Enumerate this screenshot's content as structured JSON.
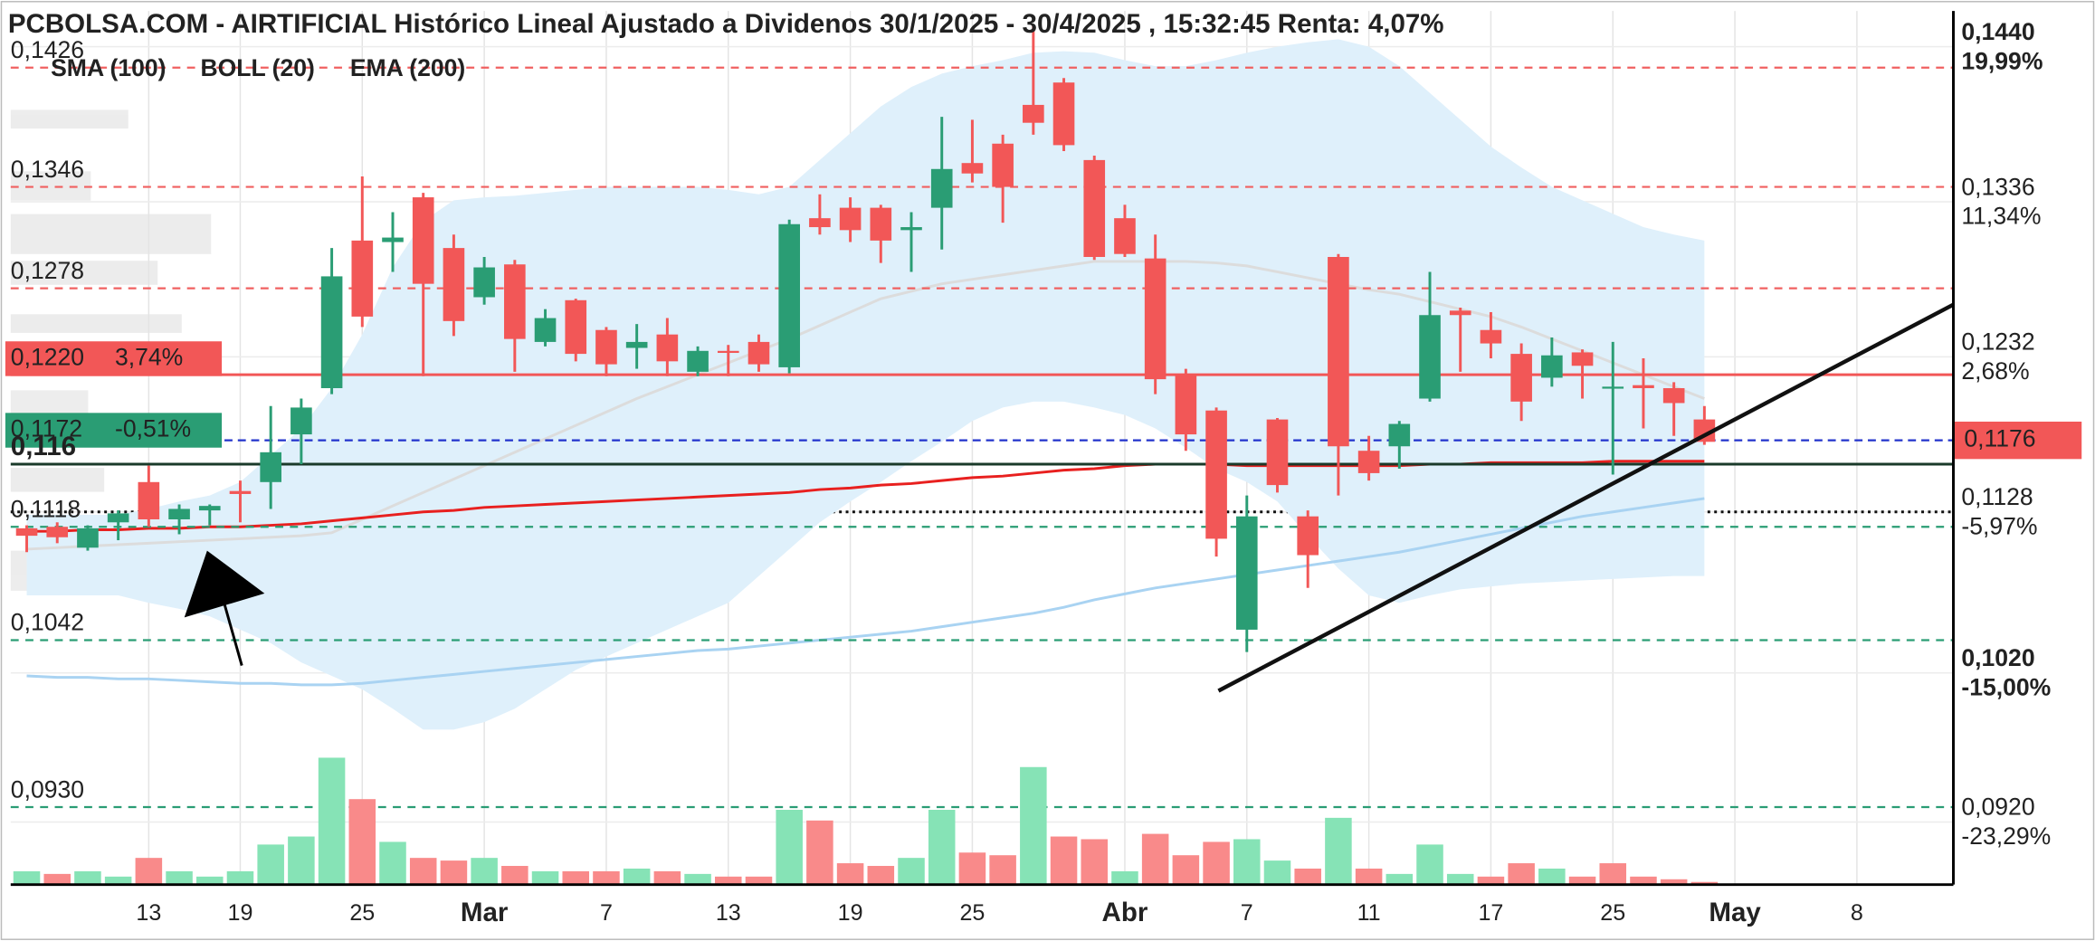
{
  "chart_data": {
    "type": "candlestick",
    "title": "PCBOLSA.COM - AIRTIFICIAL Histórico Lineal Ajustado a Dividenos 30/1/2025 - 30/4/2025 , 15:32:45 Renta: 4,07%",
    "categories": [
      null,
      null,
      null,
      null,
      "13",
      null,
      null,
      "19",
      null,
      null,
      null,
      "25",
      null,
      null,
      null,
      "Mar",
      null,
      null,
      null,
      "7",
      null,
      null,
      null,
      "13",
      null,
      null,
      null,
      "19",
      null,
      null,
      null,
      "25",
      null,
      null,
      null,
      null,
      "Abr",
      null,
      null,
      null,
      "7",
      null,
      null,
      null,
      "11",
      null,
      null,
      null,
      "17",
      null,
      null,
      null,
      "25",
      null,
      null,
      null,
      "May",
      null,
      null,
      null,
      "8"
    ],
    "ylim": [
      0.0878,
      0.1464
    ],
    "up_color": "#2a9d74",
    "down_color": "#f25757",
    "ohlc": {
      "open": [
        0.1117,
        0.1118,
        0.1104,
        0.1121,
        0.1148,
        0.1123,
        0.1129,
        0.1142,
        0.1148,
        0.118,
        0.1211,
        0.131,
        0.1309,
        0.1339,
        0.1305,
        0.1272,
        0.1294,
        0.1242,
        0.127,
        0.125,
        0.1238,
        0.1247,
        0.1222,
        0.1236,
        0.1242,
        0.1225,
        0.1325,
        0.1332,
        0.1332,
        0.1317,
        0.1332,
        0.1362,
        0.1375,
        0.1401,
        0.1416,
        0.1364,
        0.1325,
        0.1298,
        0.122,
        0.1196,
        0.1049,
        0.119,
        0.1125,
        0.1299,
        0.1169,
        0.1172,
        0.1204,
        0.1263,
        0.125,
        0.1234,
        0.1218,
        0.1235,
        0.1211,
        0.1213,
        0.1211,
        0.119,
        null,
        null,
        null,
        null,
        null
      ],
      "high": [
        0.1119,
        0.1121,
        0.1119,
        0.1129,
        0.1159,
        0.1133,
        0.1133,
        0.1149,
        0.1199,
        0.1204,
        0.1305,
        0.1353,
        0.1329,
        0.1342,
        0.1314,
        0.1299,
        0.1297,
        0.1264,
        0.1271,
        0.1252,
        0.1254,
        0.1258,
        0.1239,
        0.124,
        0.1247,
        0.1324,
        0.1341,
        0.1339,
        0.1334,
        0.1329,
        0.1393,
        0.1391,
        0.1381,
        0.1455,
        0.1419,
        0.1367,
        0.1334,
        0.1314,
        0.1224,
        0.1198,
        0.1139,
        0.1191,
        0.1129,
        0.1301,
        0.1179,
        0.1189,
        0.1289,
        0.1265,
        0.1262,
        0.1241,
        0.1245,
        0.1237,
        0.1242,
        0.1231,
        0.1215,
        0.1199,
        null,
        null,
        null,
        null,
        null
      ],
      "low": [
        0.1101,
        0.1107,
        0.1102,
        0.1109,
        0.1118,
        0.1113,
        0.1119,
        0.1121,
        0.113,
        0.116,
        0.1207,
        0.1252,
        0.1289,
        0.1219,
        0.1246,
        0.1267,
        0.1222,
        0.1239,
        0.1229,
        0.1219,
        0.1224,
        0.1219,
        0.1219,
        0.1219,
        0.1222,
        0.1221,
        0.1314,
        0.1309,
        0.1295,
        0.1289,
        0.1304,
        0.1349,
        0.1322,
        0.1381,
        0.137,
        0.1297,
        0.1299,
        0.1207,
        0.1169,
        0.1098,
        0.1034,
        0.1141,
        0.1077,
        0.1139,
        0.1149,
        0.1157,
        0.1202,
        0.1222,
        0.1231,
        0.1189,
        0.1212,
        0.1204,
        0.1153,
        0.1184,
        0.1179,
        0.1173,
        null,
        null,
        null,
        null,
        null
      ],
      "close": [
        0.1112,
        0.1111,
        0.1117,
        0.1127,
        0.1123,
        0.113,
        0.1132,
        0.114,
        0.1168,
        0.1198,
        0.1286,
        0.1259,
        0.1312,
        0.1281,
        0.1256,
        0.1292,
        0.1244,
        0.1258,
        0.1234,
        0.1227,
        0.1242,
        0.1229,
        0.1236,
        0.1235,
        0.1227,
        0.1321,
        0.1319,
        0.1317,
        0.131,
        0.1319,
        0.1358,
        0.1355,
        0.1346,
        0.1389,
        0.1374,
        0.1299,
        0.1301,
        0.1217,
        0.118,
        0.111,
        0.1125,
        0.1146,
        0.1099,
        0.1172,
        0.1154,
        0.1187,
        0.126,
        0.126,
        0.1241,
        0.1202,
        0.1233,
        0.1226,
        0.1212,
        0.1211,
        0.1201,
        0.1175,
        null,
        null,
        null,
        null,
        null
      ]
    },
    "volume": {
      "vlim": [
        0,
        100
      ],
      "up_color": "#86e3b6",
      "down_color": "#f98a8a",
      "values": [
        10,
        8,
        10,
        6,
        20,
        10,
        6,
        10,
        30,
        36,
        95,
        64,
        32,
        20,
        18,
        20,
        14,
        10,
        10,
        10,
        12,
        10,
        8,
        6,
        6,
        56,
        48,
        16,
        14,
        20,
        56,
        24,
        22,
        88,
        36,
        34,
        10,
        38,
        22,
        32,
        34,
        18,
        12,
        50,
        12,
        8,
        30,
        8,
        6,
        16,
        12,
        6,
        16,
        6,
        4,
        2,
        null,
        null,
        null,
        null,
        null
      ]
    },
    "overlays": [
      {
        "name": "SMA (100)",
        "color": "#a9d3f2",
        "values": [
          0.1018,
          0.1017,
          0.1017,
          0.1016,
          0.1016,
          0.1015,
          0.1014,
          0.1013,
          0.1013,
          0.1012,
          0.1012,
          0.1013,
          0.1015,
          0.1017,
          0.1019,
          0.1021,
          0.1023,
          0.1025,
          0.1027,
          0.1029,
          0.1031,
          0.1033,
          0.1035,
          0.1036,
          0.1038,
          0.104,
          0.1042,
          0.1044,
          0.1046,
          0.1048,
          0.1051,
          0.1054,
          0.1057,
          0.106,
          0.1064,
          0.1069,
          0.1073,
          0.1077,
          0.108,
          0.1083,
          0.1086,
          0.1089,
          0.1092,
          0.1095,
          0.1098,
          0.1101,
          0.1105,
          0.1109,
          0.1113,
          0.1117,
          0.1121,
          0.1125,
          0.1128,
          0.1131,
          0.1134,
          0.1137,
          null,
          null,
          null,
          null,
          null
        ]
      },
      {
        "name": "EMA (200)",
        "color": "#e8201f",
        "values": [
          0.1115,
          0.1115,
          0.1116,
          0.1116,
          0.1117,
          0.1117,
          0.1118,
          0.1118,
          0.1119,
          0.112,
          0.1122,
          0.1124,
          0.1126,
          0.1128,
          0.1129,
          0.1131,
          0.1132,
          0.1133,
          0.1134,
          0.1135,
          0.1136,
          0.1137,
          0.1138,
          0.1139,
          0.114,
          0.1141,
          0.1143,
          0.1144,
          0.1146,
          0.1147,
          0.1149,
          0.1151,
          0.1152,
          0.1154,
          0.1156,
          0.1157,
          0.1159,
          0.116,
          0.116,
          0.116,
          0.1159,
          0.1159,
          0.1159,
          0.1159,
          0.1159,
          0.1159,
          0.116,
          0.116,
          0.1161,
          0.1161,
          0.1161,
          0.1161,
          0.1162,
          0.1162,
          0.1162,
          0.1162,
          null,
          null,
          null,
          null,
          null
        ]
      }
    ],
    "bollinger": {
      "name": "BOLL (20)",
      "color": "#dcdcdc",
      "fill": "#dff0fb",
      "upper": [
        0.1126,
        0.1126,
        0.1126,
        0.1126,
        0.113,
        0.1135,
        0.1139,
        0.1148,
        0.1166,
        0.1184,
        0.1211,
        0.1247,
        0.1292,
        0.1323,
        0.1337,
        0.1339,
        0.134,
        0.1342,
        0.1344,
        0.1346,
        0.1346,
        0.1346,
        0.1346,
        0.1344,
        0.1341,
        0.1346,
        0.1364,
        0.1382,
        0.14,
        0.1413,
        0.1422,
        0.1427,
        0.1431,
        0.1436,
        0.1437,
        0.1436,
        0.1431,
        0.1427,
        0.1427,
        0.1431,
        0.1436,
        0.144,
        0.1443,
        0.1445,
        0.144,
        0.1427,
        0.1409,
        0.1391,
        0.1373,
        0.1359,
        0.1346,
        0.1337,
        0.1328,
        0.1319,
        0.1314,
        0.131,
        null,
        null,
        null,
        null,
        null
      ],
      "middle": [
        0.1103,
        0.1104,
        0.1105,
        0.1106,
        0.1107,
        0.1108,
        0.1109,
        0.111,
        0.1111,
        0.1112,
        0.1114,
        0.1123,
        0.1132,
        0.1141,
        0.115,
        0.1159,
        0.1168,
        0.1177,
        0.1186,
        0.1195,
        0.1204,
        0.1212,
        0.122,
        0.1228,
        0.1236,
        0.1244,
        0.1253,
        0.1262,
        0.1271,
        0.1276,
        0.1281,
        0.1284,
        0.1287,
        0.129,
        0.1293,
        0.1296,
        0.1296,
        0.1296,
        0.1296,
        0.1295,
        0.1293,
        0.1289,
        0.1285,
        0.1281,
        0.1277,
        0.1274,
        0.1269,
        0.1264,
        0.1259,
        0.1252,
        0.1244,
        0.1236,
        0.1228,
        0.122,
        0.1212,
        0.1204,
        null,
        null,
        null,
        null,
        null
      ],
      "lower": [
        0.1072,
        0.1072,
        0.1072,
        0.1072,
        0.1067,
        0.1063,
        0.1058,
        0.1049,
        0.104,
        0.1027,
        0.1018,
        0.1009,
        0.0996,
        0.0982,
        0.0982,
        0.0987,
        0.0996,
        0.1009,
        0.1022,
        0.1031,
        0.104,
        0.1049,
        0.1058,
        0.1067,
        0.1085,
        0.1103,
        0.1121,
        0.1135,
        0.1148,
        0.1162,
        0.1175,
        0.1189,
        0.1198,
        0.1202,
        0.1202,
        0.1198,
        0.1193,
        0.1184,
        0.1171,
        0.1157,
        0.1148,
        0.1135,
        0.1112,
        0.109,
        0.1072,
        0.1067,
        0.1072,
        0.1076,
        0.1078,
        0.108,
        0.1081,
        0.1082,
        0.1083,
        0.1084,
        0.1085,
        0.1085,
        null,
        null,
        null,
        null,
        null
      ]
    },
    "yticks": [
      {
        "value": 0.144,
        "label": "0,1440",
        "change": "19,99%",
        "change_color": "#21996b",
        "bold": true
      },
      {
        "value": 0.1336,
        "label": "0,1336",
        "change": "11,34%",
        "change_color": "#21996b"
      },
      {
        "value": 0.1232,
        "label": "0,1232",
        "change": "2,68%",
        "change_color": "#21996b"
      },
      {
        "value": 0.1128,
        "label": "0,1128",
        "change": "-5,97%",
        "change_color": "#f04848",
        "line": "dotted"
      },
      {
        "value": 0.102,
        "label": "0,1020",
        "change": "-15,00%",
        "change_color": "#f04848",
        "bold": true
      },
      {
        "value": 0.092,
        "label": "0,0920",
        "change": "-23,29%",
        "change_color": "#f04848"
      }
    ],
    "levels": [
      {
        "value": 0.1426,
        "label": "0,1426",
        "style": "dashed",
        "color": "#f06060"
      },
      {
        "value": 0.1346,
        "label": "0,1346",
        "style": "dashed",
        "color": "#f06060"
      },
      {
        "value": 0.1278,
        "label": "0,1278",
        "style": "dashed",
        "color": "#f06060"
      },
      {
        "value": 0.122,
        "label": "0,1220",
        "change": "3,74%",
        "style": "solid",
        "color": "#f25757",
        "box": "#f25757"
      },
      {
        "value": 0.1172,
        "label": "0,1172",
        "change": "-0,51%",
        "style": "none",
        "color": "#2a9d74",
        "box": "#2a9d74"
      },
      {
        "value": 0.116,
        "label": "0,116",
        "style": "solid",
        "color": "#1a3a2a",
        "bold": true
      },
      {
        "value": 0.1118,
        "label": "0,1118",
        "style": "dashed",
        "color": "#2a9d74"
      },
      {
        "value": 0.1042,
        "label": "0,1042",
        "style": "dashed",
        "color": "#2a9d74"
      },
      {
        "value": 0.093,
        "label": "0,0930",
        "style": "dashed",
        "color": "#2a9d74"
      }
    ],
    "last_price": {
      "value": 0.1176,
      "label": "0,1176",
      "color": "#f25757",
      "line_color": "#2233cc"
    },
    "trendline": {
      "x": [
        39.07,
        63.16
      ],
      "values": [
        0.1008,
        0.1267
      ],
      "color": "#111111"
    },
    "grid": true
  }
}
